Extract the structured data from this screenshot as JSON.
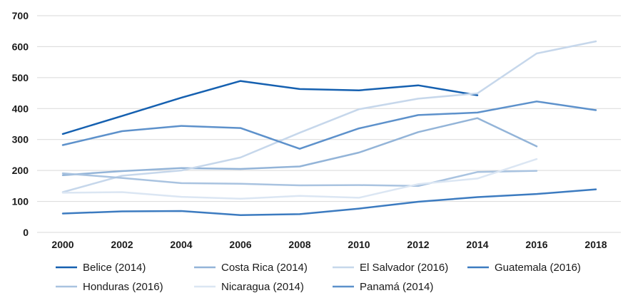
{
  "chart_data": {
    "type": "line",
    "title": "",
    "xlabel": "",
    "ylabel": "",
    "x": [
      2000,
      2002,
      2004,
      2006,
      2008,
      2010,
      2012,
      2014,
      2016,
      2018
    ],
    "ylim": [
      0,
      700
    ],
    "yticks": [
      0,
      100,
      200,
      300,
      400,
      500,
      600,
      700
    ],
    "grid": true,
    "legend_position": "bottom",
    "series": [
      {
        "name": "Belice (2014)",
        "color": "#1560b0",
        "values": [
          318,
          376,
          435,
          489,
          463,
          459,
          475,
          443,
          null,
          null
        ]
      },
      {
        "name": "Costa Rica (2014)",
        "color": "#93b4d8",
        "values": [
          185,
          198,
          208,
          205,
          213,
          258,
          324,
          369,
          278,
          null
        ]
      },
      {
        "name": "El Salvador (2016)",
        "color": "#c6d7eb",
        "values": [
          130,
          183,
          200,
          242,
          322,
          398,
          432,
          449,
          578,
          617
        ]
      },
      {
        "name": "Guatemala (2016)",
        "color": "#3c7bc0",
        "values": [
          61,
          68,
          69,
          56,
          59,
          77,
          99,
          114,
          124,
          139
        ]
      },
      {
        "name": "Honduras (2016)",
        "color": "#a9c3e0",
        "values": [
          191,
          176,
          159,
          157,
          152,
          153,
          150,
          195,
          199,
          null
        ]
      },
      {
        "name": "Nicaragua (2014)",
        "color": "#dbe6f3",
        "values": [
          128,
          130,
          115,
          109,
          118,
          112,
          156,
          174,
          237,
          null
        ]
      },
      {
        "name": "Panamá (2014)",
        "color": "#5d91cb",
        "values": [
          282,
          327,
          344,
          337,
          270,
          336,
          379,
          387,
          423,
          395
        ]
      }
    ]
  }
}
